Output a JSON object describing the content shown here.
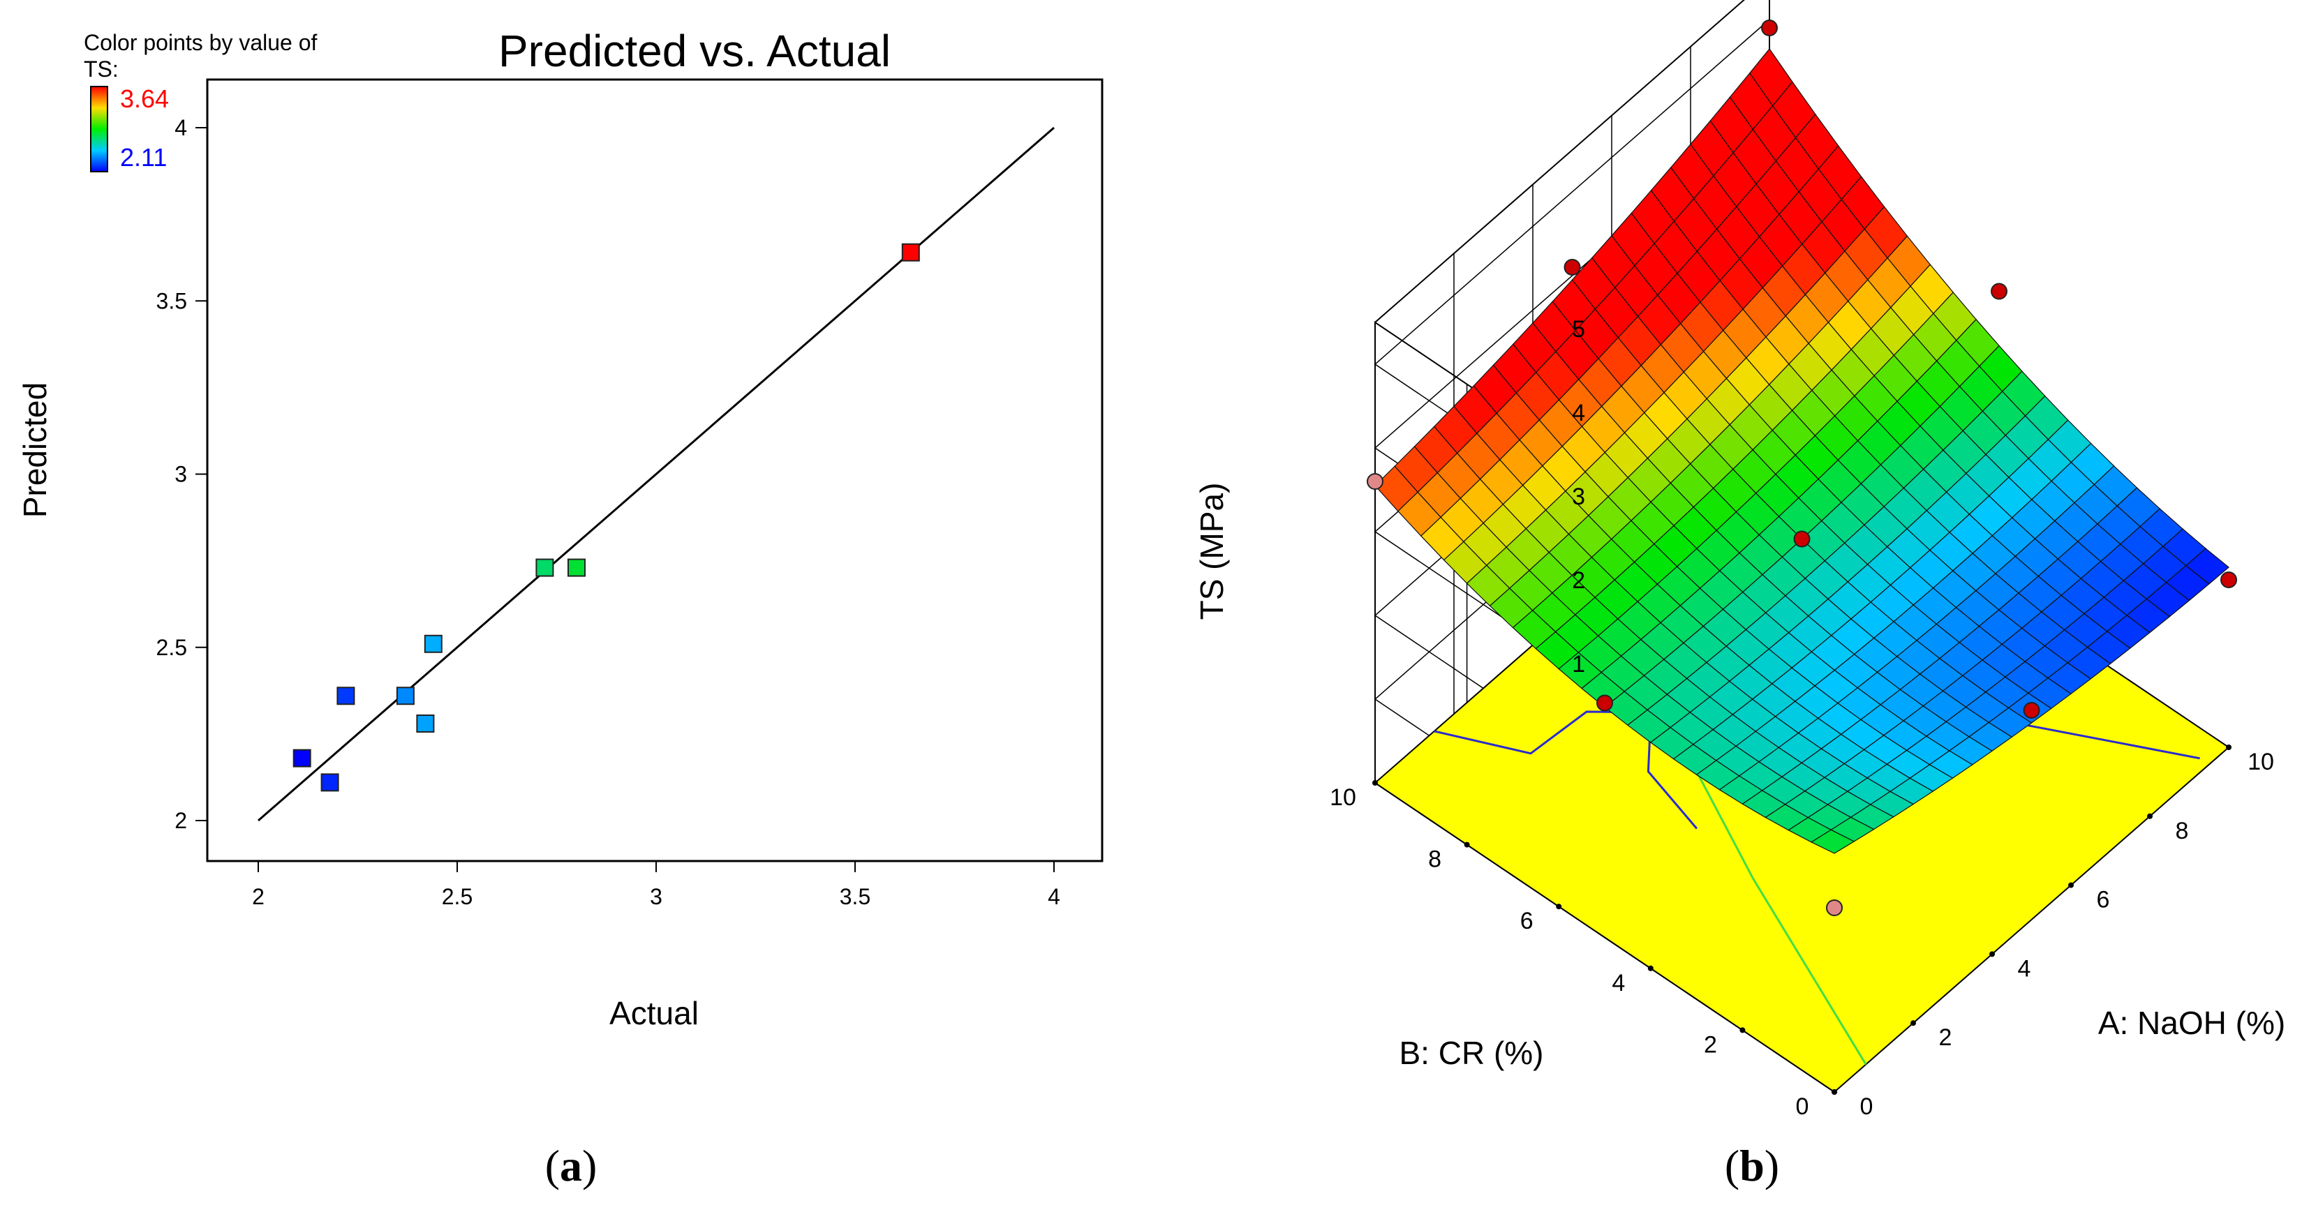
{
  "colors": {
    "frame": "#000000",
    "high": "#ff0000",
    "low": "#0000ff",
    "floor": "#ffff00",
    "contour_blue": "#2a2ad0",
    "contour_green": "#44dd44",
    "design_point": "#cc0000",
    "design_point_light": "#e08888"
  },
  "panel_a": {
    "label_open": "(",
    "label_letter": "a",
    "label_close": ")",
    "legend_line1": "Color points by value of",
    "legend_line2": "TS:",
    "legend_max": "3.64",
    "legend_min": "2.11"
  },
  "panel_b": {
    "label_open": "(",
    "label_letter": "b",
    "label_close": ")"
  },
  "chart_data": [
    {
      "type": "scatter",
      "title": "Predicted vs. Actual",
      "xlabel": "Actual",
      "ylabel": "Predicted",
      "xlim": [
        2,
        4
      ],
      "ylim": [
        2,
        4
      ],
      "xticks": [
        "2",
        "2.5",
        "3",
        "3.5",
        "4"
      ],
      "yticks": [
        "2",
        "2.5",
        "3",
        "3.5",
        "4"
      ],
      "color_variable": "TS",
      "color_range": [
        2.11,
        3.64
      ],
      "reference_line": [
        [
          2,
          2
        ],
        [
          4,
          4
        ]
      ],
      "points": [
        {
          "x": 2.11,
          "y": 2.18
        },
        {
          "x": 2.18,
          "y": 2.11
        },
        {
          "x": 2.22,
          "y": 2.36
        },
        {
          "x": 2.37,
          "y": 2.36
        },
        {
          "x": 2.42,
          "y": 2.28
        },
        {
          "x": 2.44,
          "y": 2.51
        },
        {
          "x": 2.72,
          "y": 2.73
        },
        {
          "x": 2.8,
          "y": 2.73
        },
        {
          "x": 3.64,
          "y": 3.64
        }
      ]
    },
    {
      "type": "surface3d",
      "xlabel": "A: NaOH (%)",
      "ylabel": "B: CR (%)",
      "zlabel": "TS (MPa)",
      "xlim": [
        0,
        10
      ],
      "ylim": [
        0,
        10
      ],
      "zlim": [
        0,
        5
      ],
      "xticks": [
        "0",
        "2",
        "4",
        "6",
        "8",
        "10"
      ],
      "yticks": [
        "0",
        "2",
        "4",
        "6",
        "8",
        "10"
      ],
      "zticks": [
        "1",
        "2",
        "3",
        "4",
        "5"
      ],
      "grid": true,
      "color_range": [
        2.11,
        3.64
      ],
      "design_points": [
        {
          "x": 0,
          "y": 0,
          "z": 2.2
        },
        {
          "x": 10,
          "y": 0,
          "z": 2.0
        },
        {
          "x": 0,
          "y": 10,
          "z": 3.6
        },
        {
          "x": 10,
          "y": 10,
          "z": 4.9
        },
        {
          "x": 5,
          "y": 0,
          "z": 2.5
        },
        {
          "x": 0,
          "y": 5,
          "z": 2.8
        },
        {
          "x": 10,
          "y": 5,
          "z": 3.6
        },
        {
          "x": 5,
          "y": 10,
          "z": 4.1
        },
        {
          "x": 5,
          "y": 5,
          "z": 2.7
        }
      ]
    }
  ]
}
